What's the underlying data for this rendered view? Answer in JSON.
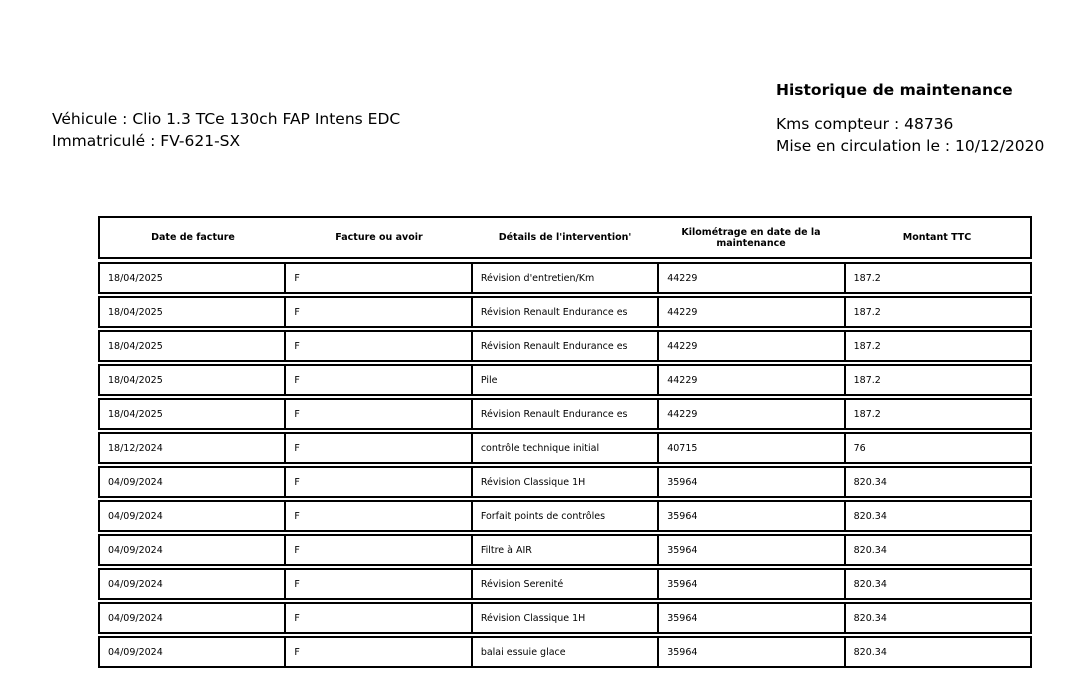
{
  "vehicle": {
    "model": "Véhicule : Clio 1.3 TCe 130ch FAP Intens EDC",
    "registration": "Immatriculé : FV-621-SX"
  },
  "summary": {
    "title": "Historique de maintenance",
    "odometer": "Kms compteur : 48736",
    "first_registration": "Mise en circulation le : 10/12/2020"
  },
  "table": {
    "headers": [
      "Date de facture",
      "Facture ou avoir",
      "Détails de l'intervention'",
      "Kilométrage en date de la maintenance",
      "Montant TTC"
    ],
    "rows": [
      [
        "18/04/2025",
        "F",
        "Révision d'entretien/Km",
        "44229",
        "187.2"
      ],
      [
        "18/04/2025",
        "F",
        "Révision Renault Endurance es",
        "44229",
        "187.2"
      ],
      [
        "18/04/2025",
        "F",
        "Révision Renault Endurance es",
        "44229",
        "187.2"
      ],
      [
        "18/04/2025",
        "F",
        "Pile",
        "44229",
        "187.2"
      ],
      [
        "18/04/2025",
        "F",
        "Révision Renault Endurance es",
        "44229",
        "187.2"
      ],
      [
        "18/12/2024",
        "F",
        "contrôle technique initial",
        "40715",
        "76"
      ],
      [
        "04/09/2024",
        "F",
        "Révision Classique 1H",
        "35964",
        "820.34"
      ],
      [
        "04/09/2024",
        "F",
        "Forfait points de contrôles",
        "35964",
        "820.34"
      ],
      [
        "04/09/2024",
        "F",
        "Filtre à  AIR",
        "35964",
        "820.34"
      ],
      [
        "04/09/2024",
        "F",
        "Révision Serenité",
        "35964",
        "820.34"
      ],
      [
        "04/09/2024",
        "F",
        "Révision Classique 1H",
        "35964",
        "820.34"
      ],
      [
        "04/09/2024",
        "F",
        "balai essuie glace",
        "35964",
        "820.34"
      ]
    ]
  }
}
